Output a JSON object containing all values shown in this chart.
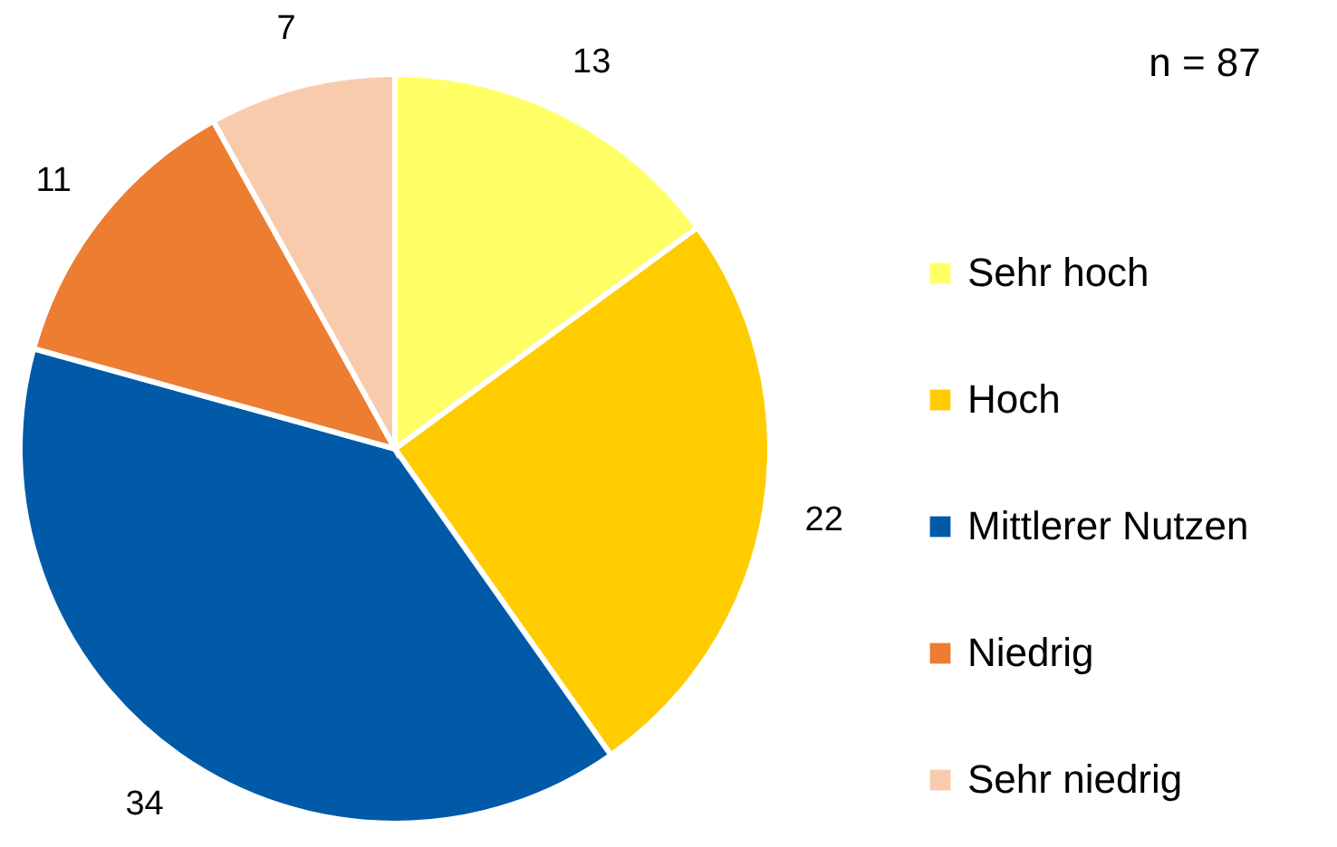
{
  "chart_data": {
    "type": "pie",
    "categories": [
      "Sehr hoch",
      "Hoch",
      "Mittlerer Nutzen",
      "Niedrig",
      "Sehr niedrig"
    ],
    "values": [
      13,
      22,
      34,
      11,
      7
    ],
    "colors": [
      "#ffff66",
      "#ffcc00",
      "#005aa8",
      "#ed7d31",
      "#f8cbad"
    ],
    "data_labels": true,
    "legend": "right",
    "annotations": [
      "n = 87"
    ]
  }
}
